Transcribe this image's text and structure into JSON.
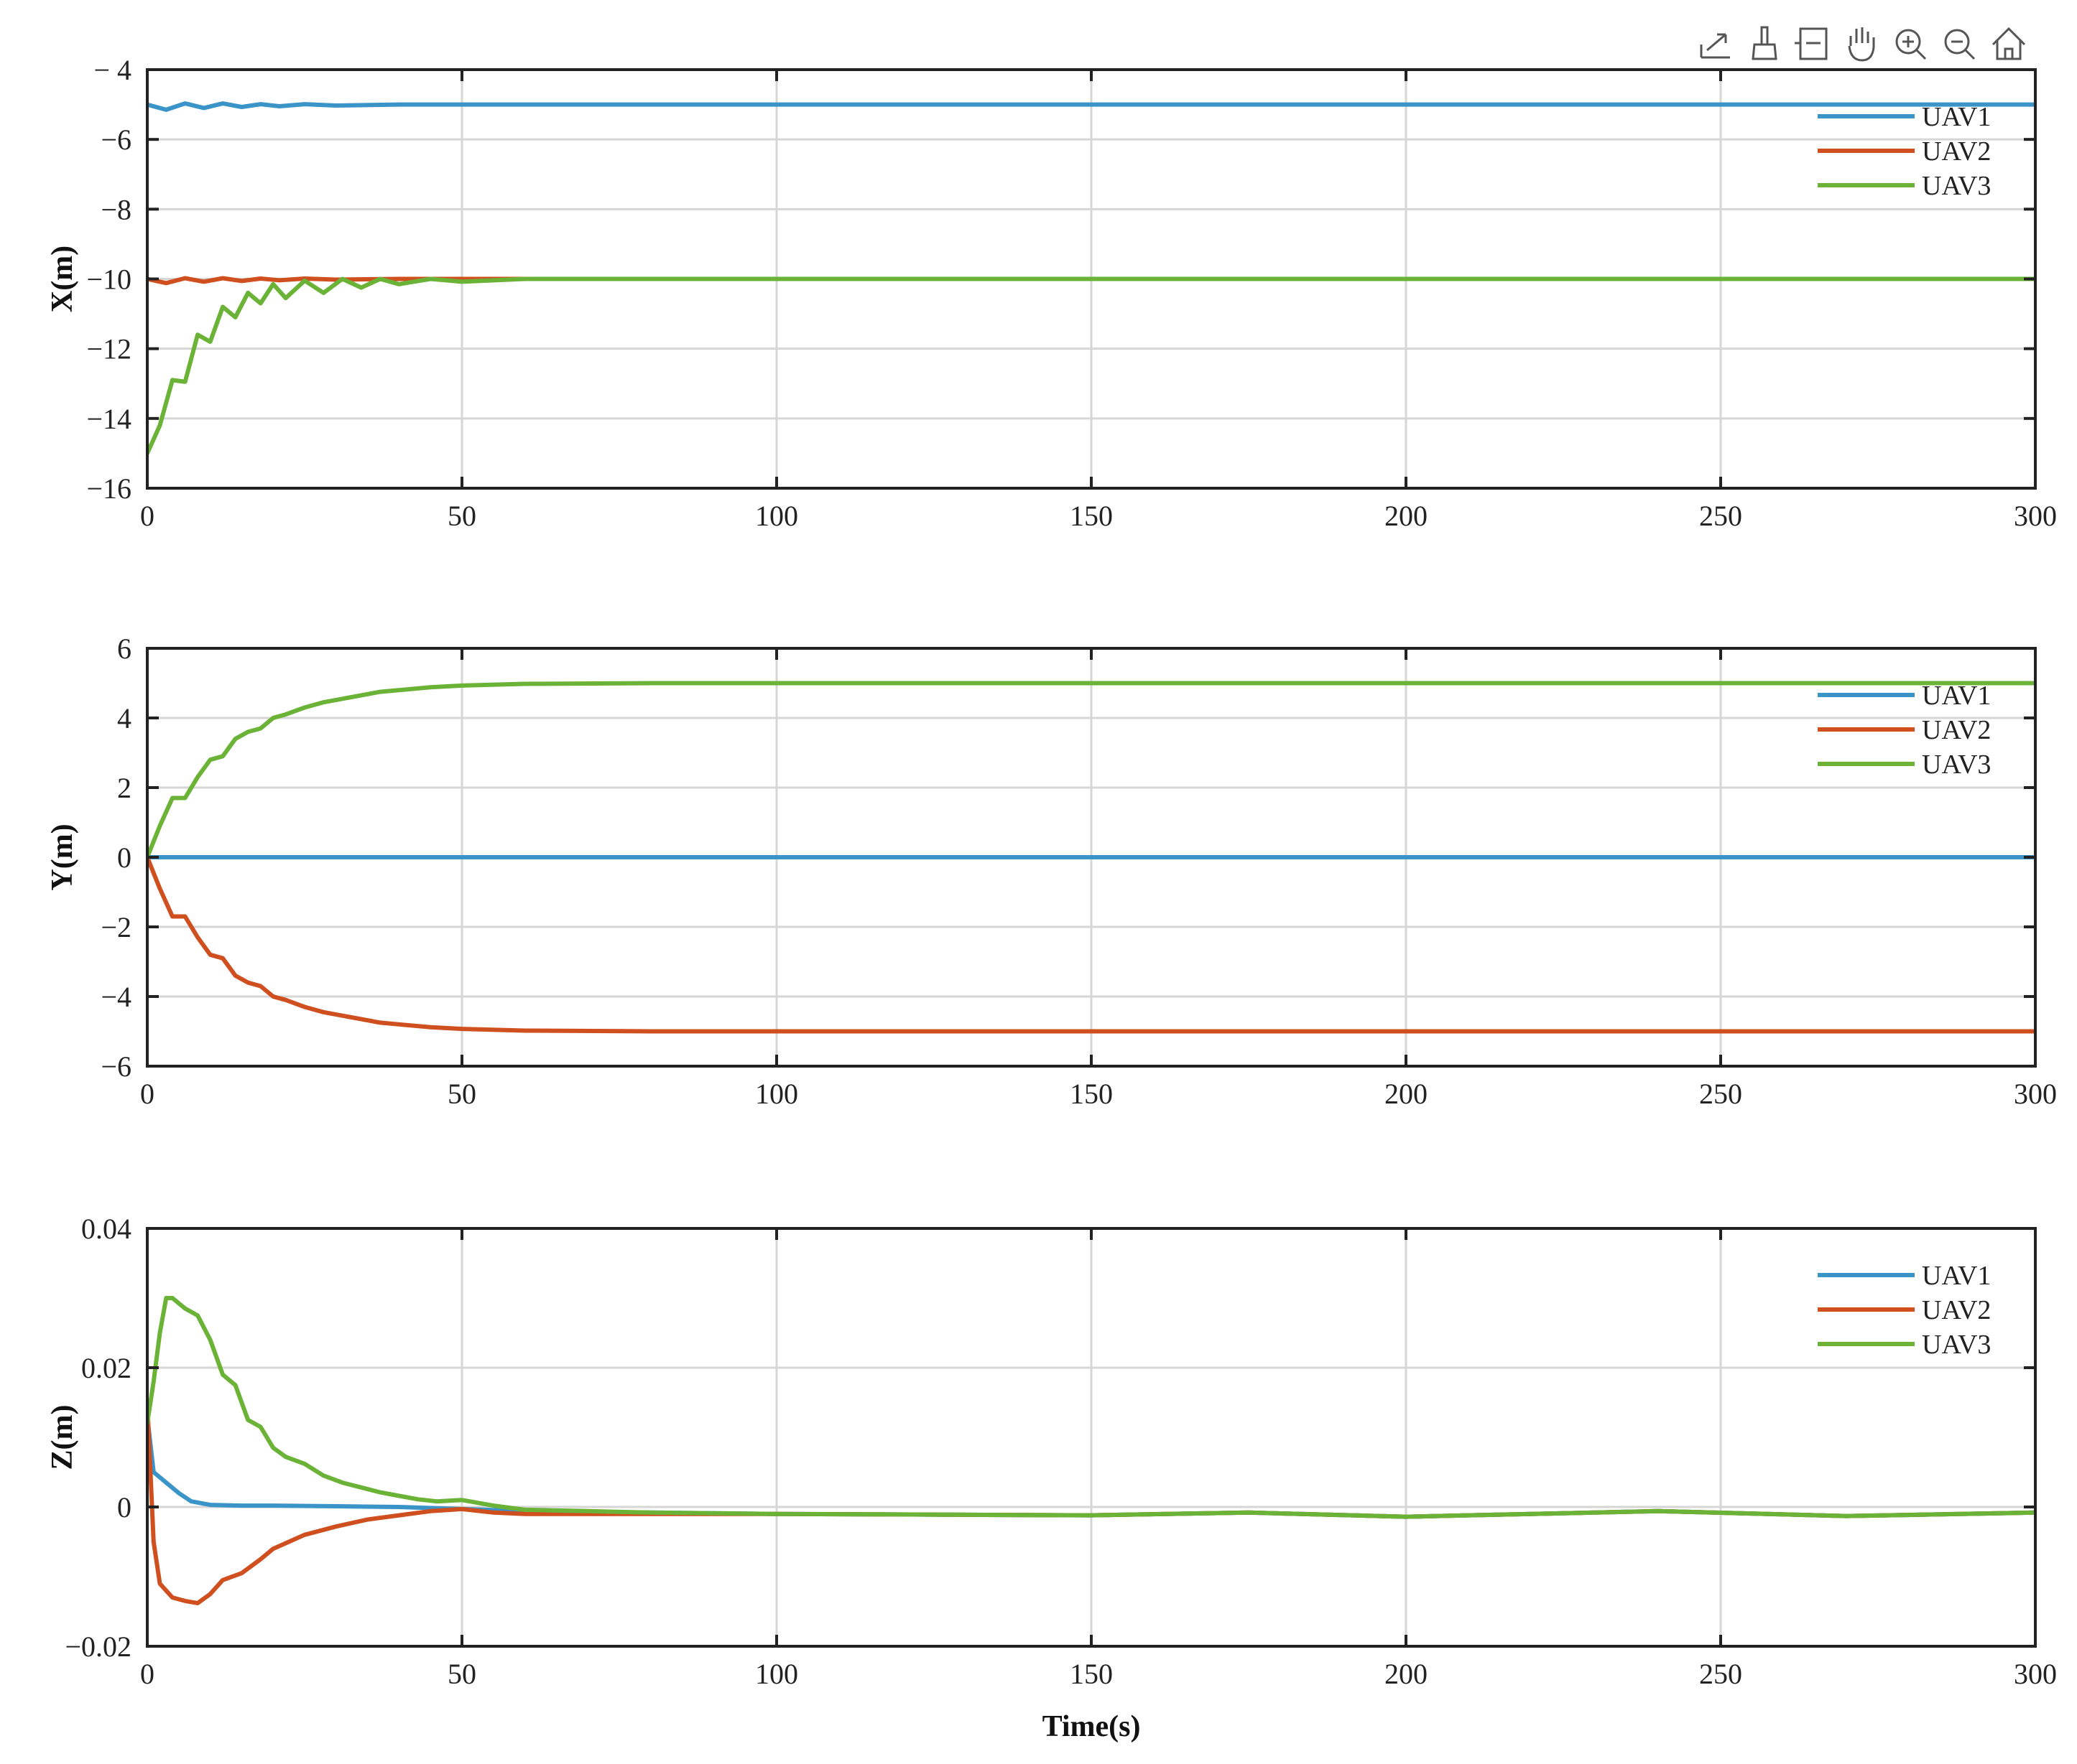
{
  "toolbar": {
    "icons": [
      "export-icon",
      "brush-icon",
      "datatip-icon",
      "pan-hand-icon",
      "zoom-in-icon",
      "zoom-out-icon",
      "home-icon"
    ]
  },
  "colors": {
    "UAV1": "#3a94c8",
    "UAV2": "#cf4f1f",
    "UAV3": "#6bb337",
    "grid": "#d6d6d6",
    "axis": "#222222"
  },
  "chart_data": [
    {
      "type": "line",
      "ylabel": "X(m)",
      "xlabel": "",
      "xlim": [
        0,
        300
      ],
      "ylim": [
        -16,
        -4
      ],
      "xticks": [
        0,
        50,
        100,
        150,
        200,
        250,
        300
      ],
      "yticks": [
        -16,
        -14,
        -12,
        -10,
        -8,
        -6,
        -4
      ],
      "ytick_labels": [
        "−16",
        "−14",
        "−12",
        "−10",
        "−8",
        "−6",
        "− 4"
      ],
      "grid": true,
      "legend": "top-right",
      "series": [
        {
          "name": "UAV1",
          "x": [
            0,
            3,
            6,
            9,
            12,
            15,
            18,
            21,
            25,
            30,
            40,
            50,
            300
          ],
          "y": [
            -5.0,
            -5.15,
            -4.97,
            -5.1,
            -4.97,
            -5.07,
            -4.99,
            -5.05,
            -4.99,
            -5.03,
            -5.0,
            -5.0,
            -5.0
          ]
        },
        {
          "name": "UAV2",
          "x": [
            0,
            3,
            6,
            9,
            12,
            15,
            18,
            21,
            25,
            30,
            40,
            50,
            300
          ],
          "y": [
            -10.0,
            -10.12,
            -9.98,
            -10.08,
            -9.98,
            -10.06,
            -9.99,
            -10.04,
            -9.99,
            -10.02,
            -10.0,
            -10.0,
            -10.0
          ]
        },
        {
          "name": "UAV3",
          "x": [
            0,
            2,
            4,
            6,
            8,
            10,
            12,
            14,
            16,
            18,
            20,
            22,
            25,
            28,
            31,
            34,
            37,
            40,
            45,
            50,
            60,
            80,
            300
          ],
          "y": [
            -15.0,
            -14.2,
            -12.9,
            -12.95,
            -11.6,
            -11.8,
            -10.8,
            -11.1,
            -10.4,
            -10.7,
            -10.15,
            -10.55,
            -10.05,
            -10.4,
            -10.0,
            -10.25,
            -10.0,
            -10.15,
            -10.0,
            -10.08,
            -10.0,
            -10.0,
            -10.0
          ]
        }
      ]
    },
    {
      "type": "line",
      "ylabel": "Y(m)",
      "xlabel": "",
      "xlim": [
        0,
        300
      ],
      "ylim": [
        -6,
        6
      ],
      "xticks": [
        0,
        50,
        100,
        150,
        200,
        250,
        300
      ],
      "yticks": [
        -6,
        -4,
        -2,
        0,
        2,
        4,
        6
      ],
      "ytick_labels": [
        "−6",
        "−4",
        "−2",
        "0",
        "2",
        "4",
        "6"
      ],
      "grid": true,
      "legend": "top-right",
      "series": [
        {
          "name": "UAV1",
          "x": [
            0,
            300
          ],
          "y": [
            0.0,
            0.0
          ]
        },
        {
          "name": "UAV2",
          "x": [
            0,
            2,
            4,
            6,
            8,
            10,
            12,
            14,
            16,
            18,
            20,
            22,
            25,
            28,
            31,
            34,
            37,
            40,
            45,
            50,
            60,
            80,
            300
          ],
          "y": [
            0.0,
            -0.9,
            -1.7,
            -1.7,
            -2.3,
            -2.8,
            -2.9,
            -3.4,
            -3.6,
            -3.7,
            -4.0,
            -4.1,
            -4.3,
            -4.45,
            -4.55,
            -4.65,
            -4.75,
            -4.8,
            -4.88,
            -4.93,
            -4.98,
            -5.0,
            -5.0
          ]
        },
        {
          "name": "UAV3",
          "x": [
            0,
            2,
            4,
            6,
            8,
            10,
            12,
            14,
            16,
            18,
            20,
            22,
            25,
            28,
            31,
            34,
            37,
            40,
            45,
            50,
            60,
            80,
            300
          ],
          "y": [
            0.0,
            0.9,
            1.7,
            1.7,
            2.3,
            2.8,
            2.9,
            3.4,
            3.6,
            3.7,
            4.0,
            4.1,
            4.3,
            4.45,
            4.55,
            4.65,
            4.75,
            4.8,
            4.88,
            4.93,
            4.98,
            5.0,
            5.0
          ]
        }
      ]
    },
    {
      "type": "line",
      "ylabel": "Z(m)",
      "xlabel": "Time(s)",
      "xlim": [
        0,
        300
      ],
      "ylim": [
        -0.02,
        0.04
      ],
      "xticks": [
        0,
        50,
        100,
        150,
        200,
        250,
        300
      ],
      "yticks": [
        -0.02,
        0,
        0.02,
        0.04
      ],
      "ytick_labels": [
        "−0.02",
        "0",
        "0.02",
        "0.04"
      ],
      "grid": true,
      "legend": "top-right",
      "series": [
        {
          "name": "UAV1",
          "x": [
            0,
            1,
            3,
            5,
            7,
            10,
            15,
            20,
            30,
            40,
            50,
            60,
            80,
            100,
            150,
            175,
            200,
            240,
            270,
            300
          ],
          "y": [
            0.013,
            0.005,
            0.0035,
            0.002,
            0.0008,
            0.0003,
            0.0002,
            0.0002,
            0.0001,
            0.0,
            -0.0003,
            -0.0006,
            -0.0008,
            -0.001,
            -0.0012,
            -0.0008,
            -0.0014,
            -0.0006,
            -0.0013,
            -0.0008
          ]
        },
        {
          "name": "UAV2",
          "x": [
            0,
            1,
            2,
            4,
            6,
            8,
            10,
            12,
            15,
            18,
            20,
            25,
            30,
            35,
            40,
            45,
            50,
            55,
            60,
            80,
            100,
            150,
            175,
            200,
            240,
            270,
            300
          ],
          "y": [
            0.015,
            -0.005,
            -0.011,
            -0.013,
            -0.0135,
            -0.0138,
            -0.0125,
            -0.0105,
            -0.0095,
            -0.0075,
            -0.006,
            -0.004,
            -0.0028,
            -0.0018,
            -0.0012,
            -0.0006,
            -0.0003,
            -0.0008,
            -0.001,
            -0.001,
            -0.001,
            -0.0012,
            -0.0008,
            -0.0014,
            -0.0006,
            -0.0013,
            -0.0008
          ]
        },
        {
          "name": "UAV3",
          "x": [
            0,
            1,
            2,
            3,
            4,
            6,
            8,
            10,
            12,
            14,
            16,
            18,
            20,
            22,
            25,
            28,
            31,
            34,
            37,
            40,
            43,
            46,
            50,
            55,
            60,
            70,
            80,
            100,
            150,
            175,
            200,
            240,
            270,
            300
          ],
          "y": [
            0.012,
            0.018,
            0.025,
            0.03,
            0.03,
            0.0285,
            0.0275,
            0.024,
            0.019,
            0.0175,
            0.0125,
            0.0115,
            0.0085,
            0.0072,
            0.0062,
            0.0045,
            0.0035,
            0.0028,
            0.0021,
            0.0016,
            0.0011,
            0.0008,
            0.001,
            0.0002,
            -0.0004,
            -0.0006,
            -0.0008,
            -0.001,
            -0.0012,
            -0.0008,
            -0.0014,
            -0.0006,
            -0.0013,
            -0.0008
          ]
        }
      ]
    }
  ]
}
